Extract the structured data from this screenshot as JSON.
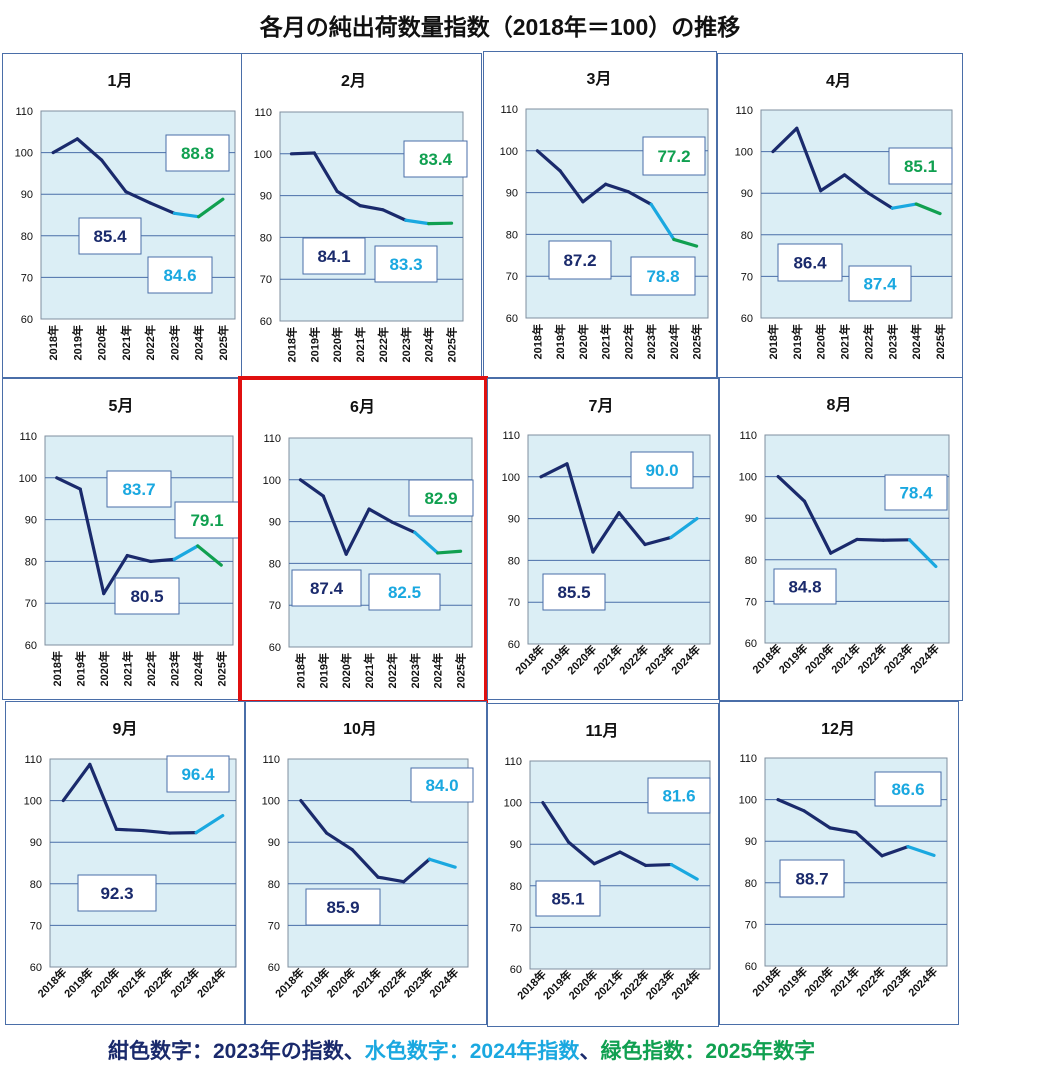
{
  "title": "各月の純出荷数量指数（2018年＝100）の推移",
  "colors": {
    "c2023": "#1a2a6c",
    "c2024": "#1aa8e0",
    "c2025": "#10a050",
    "plot_bg": "#dbeef5",
    "highlight": "#e01010"
  },
  "legend": {
    "part1": "紺色数字：2023年の指数、",
    "part2": "水色数字：2024年指数",
    "part3": "、",
    "part4": "緑色指数：2025年数字"
  },
  "highlighted_month": "6月",
  "chart_data": [
    {
      "type": "line",
      "title": "1月",
      "ylim": [
        60,
        110
      ],
      "yticks": [
        60,
        70,
        80,
        90,
        100,
        110
      ],
      "categories": [
        "2018年",
        "2019年",
        "2020年",
        "2021年",
        "2022年",
        "2023年",
        "2024年",
        "2025年"
      ],
      "values": [
        100,
        103.3,
        98.2,
        90.6,
        87.9,
        85.4,
        84.6,
        88.8
      ],
      "labels": {
        "v2023": "85.4",
        "v2024": "84.6",
        "v2025": "88.8"
      }
    },
    {
      "type": "line",
      "title": "2月",
      "ylim": [
        60,
        110
      ],
      "yticks": [
        60,
        70,
        80,
        90,
        100,
        110
      ],
      "categories": [
        "2018年",
        "2019年",
        "2020年",
        "2021年",
        "2022年",
        "2023年",
        "2024年",
        "2025年"
      ],
      "values": [
        100,
        100.2,
        91.0,
        87.6,
        86.6,
        84.1,
        83.3,
        83.4
      ],
      "labels": {
        "v2023": "84.1",
        "v2024": "83.3",
        "v2025": "83.4"
      }
    },
    {
      "type": "line",
      "title": "3月",
      "ylim": [
        60,
        110
      ],
      "yticks": [
        60,
        70,
        80,
        90,
        100,
        110
      ],
      "categories": [
        "2018年",
        "2019年",
        "2020年",
        "2021年",
        "2022年",
        "2023年",
        "2024年",
        "2025年"
      ],
      "values": [
        100,
        95.2,
        87.8,
        92.0,
        90.2,
        87.2,
        78.8,
        77.2
      ],
      "labels": {
        "v2023": "87.2",
        "v2024": "78.8",
        "v2025": "77.2"
      }
    },
    {
      "type": "line",
      "title": "4月",
      "ylim": [
        60,
        110
      ],
      "yticks": [
        60,
        70,
        80,
        90,
        100,
        110
      ],
      "categories": [
        "2018年",
        "2019年",
        "2020年",
        "2021年",
        "2022年",
        "2023年",
        "2024年",
        "2025年"
      ],
      "values": [
        100,
        105.6,
        90.6,
        94.4,
        90.0,
        86.4,
        87.4,
        85.1
      ],
      "labels": {
        "v2023": "86.4",
        "v2024": "87.4",
        "v2025": "85.1"
      }
    },
    {
      "type": "line",
      "title": "5月",
      "ylim": [
        60,
        110
      ],
      "yticks": [
        60,
        70,
        80,
        90,
        100,
        110
      ],
      "categories": [
        "2018年",
        "2019年",
        "2020年",
        "2021年",
        "2022年",
        "2023年",
        "2024年",
        "2025年"
      ],
      "values": [
        100,
        97.3,
        72.3,
        81.4,
        80.0,
        80.5,
        83.7,
        79.1
      ],
      "labels": {
        "v2023": "80.5",
        "v2024": "83.7",
        "v2025": "79.1"
      }
    },
    {
      "type": "line",
      "title": "6月",
      "ylim": [
        60,
        110
      ],
      "yticks": [
        60,
        70,
        80,
        90,
        100,
        110
      ],
      "categories": [
        "2018年",
        "2019年",
        "2020年",
        "2021年",
        "2022年",
        "2023年",
        "2024年",
        "2025年"
      ],
      "values": [
        100,
        96.1,
        82.2,
        93.0,
        89.9,
        87.4,
        82.5,
        82.9
      ],
      "labels": {
        "v2023": "87.4",
        "v2024": "82.5",
        "v2025": "82.9"
      }
    },
    {
      "type": "line",
      "title": "7月",
      "ylim": [
        60,
        110
      ],
      "yticks": [
        60,
        70,
        80,
        90,
        100,
        110
      ],
      "categories": [
        "2018年",
        "2019年",
        "2020年",
        "2021年",
        "2022年",
        "2023年",
        "2024年"
      ],
      "values": [
        100,
        103.1,
        82.0,
        91.4,
        83.8,
        85.5,
        90.0
      ],
      "labels": {
        "v2023": "85.5",
        "v2024": "90.0"
      }
    },
    {
      "type": "line",
      "title": "8月",
      "ylim": [
        60,
        110
      ],
      "yticks": [
        60,
        70,
        80,
        90,
        100,
        110
      ],
      "categories": [
        "2018年",
        "2019年",
        "2020年",
        "2021年",
        "2022年",
        "2023年",
        "2024年"
      ],
      "values": [
        100,
        94.1,
        81.6,
        84.9,
        84.7,
        84.8,
        78.4
      ],
      "labels": {
        "v2023": "84.8",
        "v2024": "78.4"
      }
    },
    {
      "type": "line",
      "title": "9月",
      "ylim": [
        60,
        110
      ],
      "yticks": [
        60,
        70,
        80,
        90,
        100,
        110
      ],
      "categories": [
        "2018年",
        "2019年",
        "2020年",
        "2021年",
        "2022年",
        "2023年",
        "2024年"
      ],
      "values": [
        100,
        108.7,
        93.1,
        92.8,
        92.2,
        92.3,
        96.4
      ],
      "labels": {
        "v2023": "92.3",
        "v2024": "96.4"
      }
    },
    {
      "type": "line",
      "title": "10月",
      "ylim": [
        60,
        110
      ],
      "yticks": [
        60,
        70,
        80,
        90,
        100,
        110
      ],
      "categories": [
        "2018年",
        "2019年",
        "2020年",
        "2021年",
        "2022年",
        "2023年",
        "2024年"
      ],
      "values": [
        100,
        92.2,
        88.2,
        81.6,
        80.5,
        85.9,
        84.0
      ],
      "labels": {
        "v2023": "85.9",
        "v2024": "84.0"
      }
    },
    {
      "type": "line",
      "title": "11月",
      "ylim": [
        60,
        110
      ],
      "yticks": [
        60,
        70,
        80,
        90,
        100,
        110
      ],
      "categories": [
        "2018年",
        "2019年",
        "2020年",
        "2021年",
        "2022年",
        "2023年",
        "2024年"
      ],
      "values": [
        100,
        90.5,
        85.3,
        88.1,
        84.9,
        85.1,
        81.6
      ],
      "labels": {
        "v2023": "85.1",
        "v2024": "81.6"
      }
    },
    {
      "type": "line",
      "title": "12月",
      "ylim": [
        60,
        110
      ],
      "yticks": [
        60,
        70,
        80,
        90,
        100,
        110
      ],
      "categories": [
        "2018年",
        "2019年",
        "2020年",
        "2021年",
        "2022年",
        "2023年",
        "2024年"
      ],
      "values": [
        100,
        97.3,
        93.2,
        92.1,
        86.5,
        88.7,
        86.6
      ],
      "labels": {
        "v2023": "88.7",
        "v2024": "86.6"
      }
    }
  ]
}
